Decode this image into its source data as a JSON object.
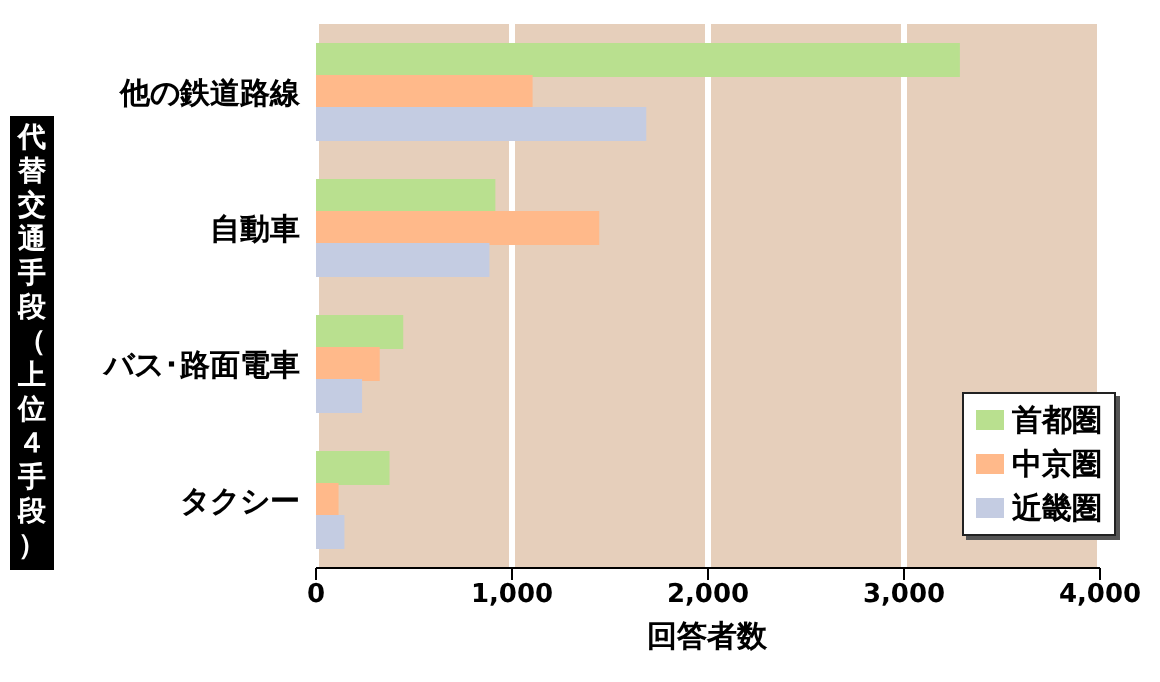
{
  "chart_data": {
    "type": "bar",
    "orientation": "horizontal",
    "xlabel": "回答者数",
    "ylabel": "代替交通手段（上位４手段）",
    "categories": [
      "他の鉄道路線",
      "自動車",
      "バス･路面電車",
      "タクシー"
    ],
    "series": [
      {
        "name": "首都圏",
        "color": "#b9e08f",
        "values": [
          3280,
          910,
          440,
          370
        ]
      },
      {
        "name": "中京圏",
        "color": "#ffb98a",
        "values": [
          1100,
          1440,
          320,
          110
        ]
      },
      {
        "name": "近畿圏",
        "color": "#c4cce2",
        "values": [
          1680,
          880,
          230,
          140
        ]
      }
    ],
    "xlim": [
      0,
      4000
    ],
    "xticks": [
      0,
      {
        "value": 1000,
        "label": "1,000"
      },
      {
        "value": 2000,
        "label": "2,000"
      },
      {
        "value": 3000,
        "label": "3,000"
      },
      {
        "value": 4000,
        "label": "4,000"
      }
    ],
    "grid": "x",
    "legend": "bottom right"
  }
}
